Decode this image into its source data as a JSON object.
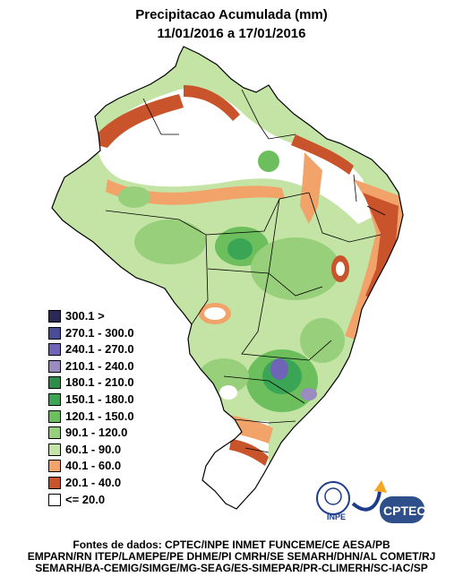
{
  "map": {
    "title_line1": "Precipitacao Acumulada (mm)",
    "title_line2": "11/01/2016 a 17/01/2016"
  },
  "legend": {
    "classes": [
      {
        "label": "300.1 >",
        "color": "#2a2a55"
      },
      {
        "label": "270.1 - 300.0",
        "color": "#4a4d96"
      },
      {
        "label": "240.1 - 270.0",
        "color": "#7064b8"
      },
      {
        "label": "210.1 - 240.0",
        "color": "#9a8cc0"
      },
      {
        "label": "180.1 - 210.0",
        "color": "#2f8d4b"
      },
      {
        "label": "150.1 - 180.0",
        "color": "#3aa655"
      },
      {
        "label": "120.1 - 150.0",
        "color": "#6cbf5c"
      },
      {
        "label": "90.1 - 120.0",
        "color": "#98cf7b"
      },
      {
        "label": "60.1 - 90.0",
        "color": "#c3e4a5"
      },
      {
        "label": "40.1 - 60.0",
        "color": "#f2a36a"
      },
      {
        "label": "20.1 - 40.0",
        "color": "#c9532a"
      },
      {
        "label": "<= 20.0",
        "color": "#ffffff"
      }
    ]
  },
  "sources": {
    "line1": "Fontes de dados: CPTEC/INPE INMET FUNCEME/CE AESA/PB",
    "line2": "EMPARN/RN ITEP/LAMEPE/PE DHME/PI CMRH/SE SEMARH/DHN/AL COMET/RJ",
    "line3": "SEMARH/BA-CEMIG/SIMGE/MG-SEAG/ES-SIMEPAR/PR-CLIMERH/SC-IAC/SP"
  },
  "logos": {
    "inpe": "INPE",
    "cptec": "CPTEC"
  }
}
